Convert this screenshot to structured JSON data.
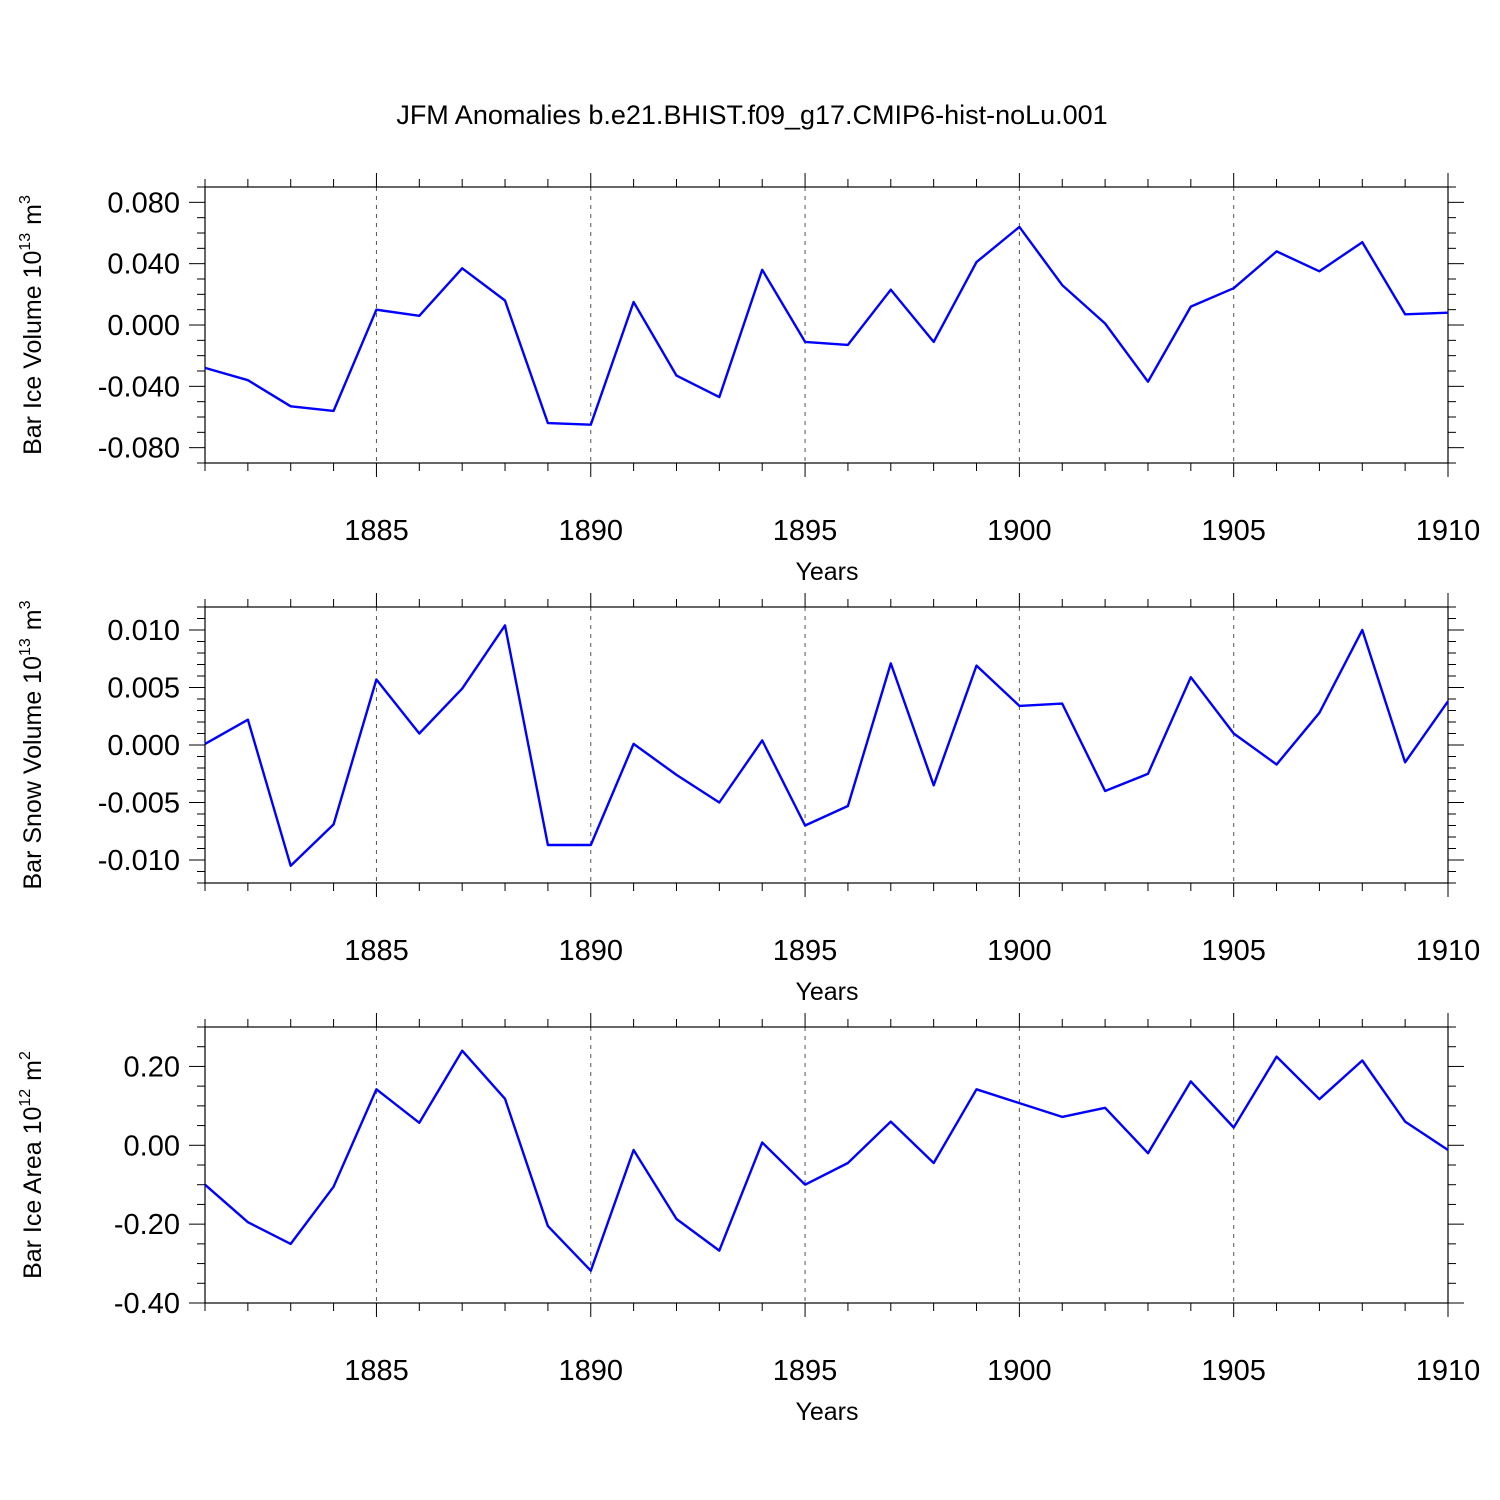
{
  "title": "JFM Anomalies b.e21.BHIST.f09_g17.CMIP6-hist-noLu.001",
  "colors": {
    "series": "#0000ff",
    "axes": "#000000",
    "grid": "#555555"
  },
  "chart_data": [
    {
      "type": "line",
      "xlabel": "Years",
      "ylabel_main": "Bar Ice Volume 10",
      "ylabel_exp": "13",
      "ylabel_unit": "m",
      "ylabel_unit_exp": "3",
      "xlim": [
        1881,
        1910
      ],
      "ylim": [
        -0.09,
        0.09
      ],
      "xticks": [
        1885,
        1890,
        1895,
        1900,
        1905,
        1910
      ],
      "xtick_labels": [
        "1885",
        "1890",
        "1895",
        "1900",
        "1905",
        "1910"
      ],
      "yticks": [
        -0.08,
        -0.04,
        0.0,
        0.04,
        0.08
      ],
      "ytick_labels": [
        "-0.080",
        "-0.040",
        "0.000",
        "0.040",
        "0.080"
      ],
      "yminor_step": 0.01,
      "gridlines_x": [
        1885,
        1890,
        1895,
        1900,
        1905
      ],
      "x": [
        1881,
        1882,
        1883,
        1884,
        1885,
        1886,
        1887,
        1888,
        1889,
        1890,
        1891,
        1892,
        1893,
        1894,
        1895,
        1896,
        1897,
        1898,
        1899,
        1900,
        1901,
        1902,
        1903,
        1904,
        1905,
        1906,
        1907,
        1908,
        1909,
        1910
      ],
      "values": [
        -0.028,
        -0.036,
        -0.053,
        -0.056,
        0.01,
        0.006,
        0.037,
        0.016,
        -0.064,
        -0.065,
        0.015,
        -0.033,
        -0.047,
        0.036,
        -0.011,
        -0.013,
        0.023,
        -0.011,
        0.041,
        0.064,
        0.026,
        0.001,
        -0.037,
        0.012,
        0.024,
        0.048,
        0.035,
        0.054,
        0.007,
        0.008
      ]
    },
    {
      "type": "line",
      "xlabel": "Years",
      "ylabel_main": "Bar Snow Volume 10",
      "ylabel_exp": "13",
      "ylabel_unit": "m",
      "ylabel_unit_exp": "3",
      "xlim": [
        1881,
        1910
      ],
      "ylim": [
        -0.012,
        0.012
      ],
      "xticks": [
        1885,
        1890,
        1895,
        1900,
        1905,
        1910
      ],
      "xtick_labels": [
        "1885",
        "1890",
        "1895",
        "1900",
        "1905",
        "1910"
      ],
      "yticks": [
        -0.01,
        -0.005,
        0.0,
        0.005,
        0.01
      ],
      "ytick_labels": [
        "-0.010",
        "-0.005",
        "0.000",
        "0.005",
        "0.010"
      ],
      "yminor_step": 0.001,
      "gridlines_x": [
        1885,
        1890,
        1895,
        1900,
        1905
      ],
      "x": [
        1881,
        1882,
        1883,
        1884,
        1885,
        1886,
        1887,
        1888,
        1889,
        1890,
        1891,
        1892,
        1893,
        1894,
        1895,
        1896,
        1897,
        1898,
        1899,
        1900,
        1901,
        1902,
        1903,
        1904,
        1905,
        1906,
        1907,
        1908,
        1909,
        1910
      ],
      "values": [
        0.0001,
        0.0022,
        -0.0105,
        -0.0069,
        0.0057,
        0.001,
        0.0049,
        0.0104,
        -0.0087,
        -0.0087,
        0.0001,
        -0.0026,
        -0.005,
        0.0004,
        -0.007,
        -0.0053,
        0.0071,
        -0.0035,
        0.0069,
        0.0034,
        0.0036,
        -0.004,
        -0.0025,
        0.0059,
        0.001,
        -0.0017,
        0.0028,
        0.01,
        -0.0015,
        0.0038
      ]
    },
    {
      "type": "line",
      "xlabel": "Years",
      "ylabel_main": "Bar Ice Area 10",
      "ylabel_exp": "12",
      "ylabel_unit": "m",
      "ylabel_unit_exp": "2",
      "xlim": [
        1881,
        1910
      ],
      "ylim": [
        -0.4,
        0.3
      ],
      "xticks": [
        1885,
        1890,
        1895,
        1900,
        1905,
        1910
      ],
      "xtick_labels": [
        "1885",
        "1890",
        "1895",
        "1900",
        "1905",
        "1910"
      ],
      "yticks": [
        -0.4,
        -0.2,
        0.0,
        0.2
      ],
      "ytick_labels": [
        "-0.40",
        "-0.20",
        "0.00",
        "0.20"
      ],
      "yminor_step": 0.05,
      "gridlines_x": [
        1885,
        1890,
        1895,
        1900,
        1905
      ],
      "x": [
        1881,
        1882,
        1883,
        1884,
        1885,
        1886,
        1887,
        1888,
        1889,
        1890,
        1891,
        1892,
        1893,
        1894,
        1895,
        1896,
        1897,
        1898,
        1899,
        1900,
        1901,
        1902,
        1903,
        1904,
        1905,
        1906,
        1907,
        1908,
        1909,
        1910
      ],
      "values": [
        -0.1,
        -0.195,
        -0.25,
        -0.105,
        0.142,
        0.057,
        0.24,
        0.118,
        -0.205,
        -0.318,
        -0.012,
        -0.187,
        -0.267,
        0.007,
        -0.1,
        -0.045,
        0.06,
        -0.045,
        0.142,
        0.107,
        0.072,
        0.095,
        -0.02,
        0.162,
        0.045,
        0.225,
        0.117,
        0.215,
        0.06,
        -0.012
      ]
    }
  ]
}
